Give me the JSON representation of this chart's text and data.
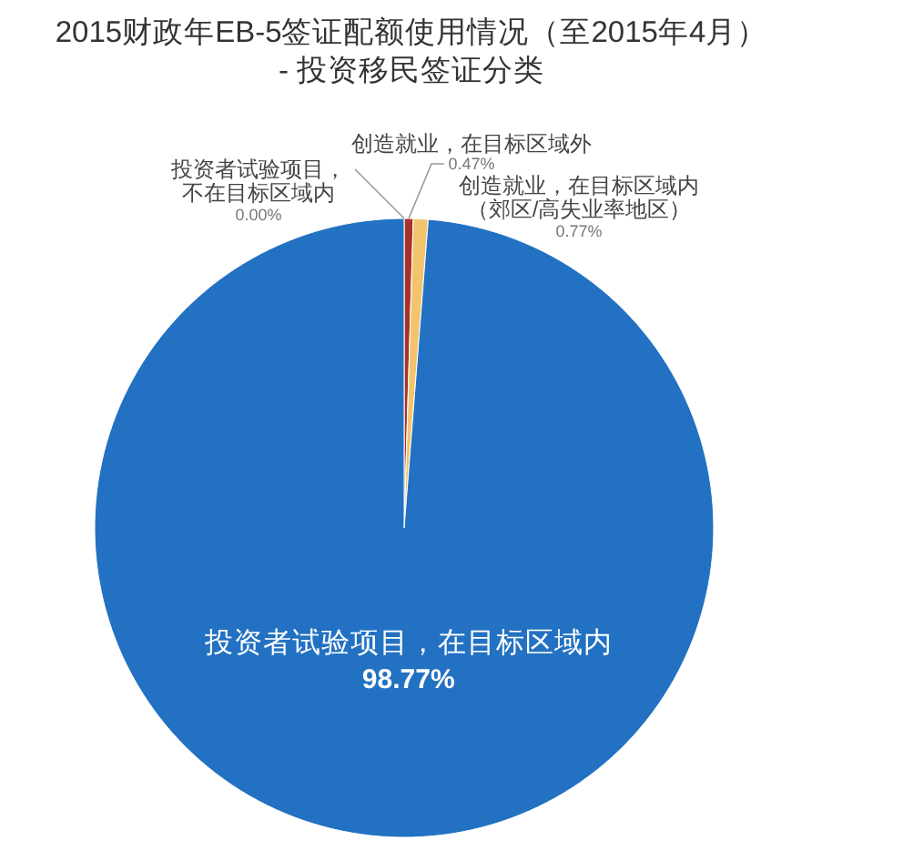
{
  "chart_data": {
    "type": "pie",
    "title": "2015财政年EB-5签证配额使用情况（至2015年4月）",
    "subtitle": "- 投资移民签证分类",
    "categories": [
      "投资者试验项目，不在目标区域内",
      "创造就业，在目标区域外",
      "创造就业，在目标区域内（郊区/高失业率地区）",
      "投资者试验项目，在目标区域内"
    ],
    "values": [
      0,
      0.47,
      0.77,
      98.77
    ],
    "colors": [
      "#c0504d",
      "#a8322a",
      "#f2c46e",
      "#2271c2"
    ],
    "value_labels": [
      "0.00%",
      "0.47%",
      "0.77%",
      "98.77%"
    ]
  }
}
